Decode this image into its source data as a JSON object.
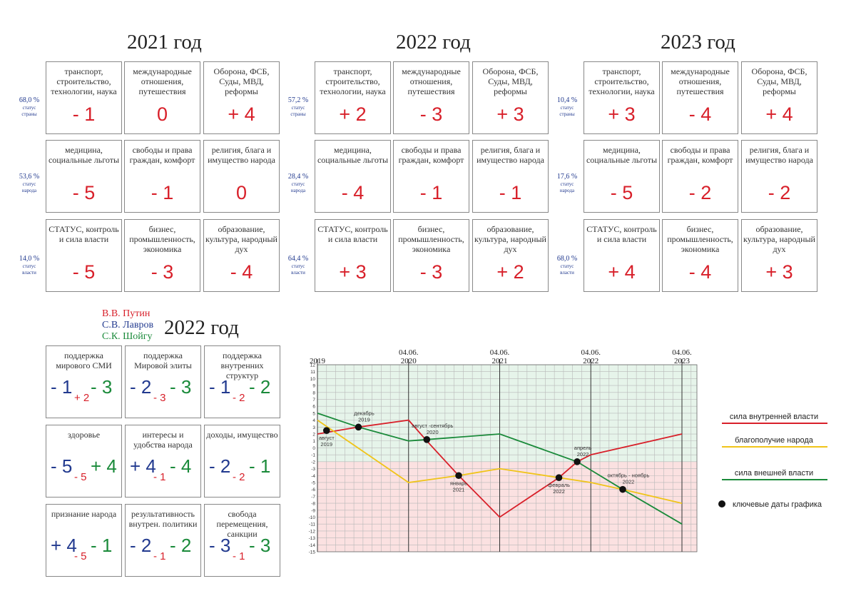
{
  "years": [
    "2021 год",
    "2022 год",
    "2023 год"
  ],
  "blocks": [
    {
      "side": [
        {
          "pct": "68,0 %",
          "l1": "статус",
          "l2": "страны"
        },
        {
          "pct": "53,6 %",
          "l1": "статус",
          "l2": "народа"
        },
        {
          "pct": "14,0 %",
          "l1": "статус",
          "l2": "власти"
        }
      ],
      "cells": [
        {
          "label": "транспорт, строительство, технологии, наука",
          "value": "- 1"
        },
        {
          "label": "международные отношения, путешествия",
          "value": "0"
        },
        {
          "label": "Оборона, ФСБ, Суды, МВД, реформы",
          "value": "+ 4"
        },
        {
          "label": "медицина, социальные льготы",
          "value": "- 5"
        },
        {
          "label": "свободы и права граждан, комфорт",
          "value": "- 1"
        },
        {
          "label": "религия, блага и имущество народа",
          "value": "0"
        },
        {
          "label": "СТАТУС, контроль и сила власти",
          "value": "- 5"
        },
        {
          "label": "бизнес, промышленность, экономика",
          "value": "- 3"
        },
        {
          "label": "образование, культура, народный дух",
          "value": "- 4"
        }
      ]
    },
    {
      "side": [
        {
          "pct": "57,2 %",
          "l1": "статус",
          "l2": "страны"
        },
        {
          "pct": "28,4 %",
          "l1": "статус",
          "l2": "народа"
        },
        {
          "pct": "64,4 %",
          "l1": "статус",
          "l2": "власти"
        }
      ],
      "cells": [
        {
          "label": "транспорт, строительство, технологии, наука",
          "value": "+ 2"
        },
        {
          "label": "международные отношения, путешествия",
          "value": "- 3"
        },
        {
          "label": "Оборона, ФСБ, Суды, МВД, реформы",
          "value": "+ 3"
        },
        {
          "label": "медицина, социальные льготы",
          "value": "- 4"
        },
        {
          "label": "свободы и права граждан, комфорт",
          "value": "- 1"
        },
        {
          "label": "религия, блага и имущество народа",
          "value": "- 1"
        },
        {
          "label": "СТАТУС, контроль и сила власти",
          "value": "+ 3"
        },
        {
          "label": "бизнес, промышленность, экономика",
          "value": "- 3"
        },
        {
          "label": "образование, культура, народный дух",
          "value": "+ 2"
        }
      ]
    },
    {
      "side": [
        {
          "pct": "10,4 %",
          "l1": "статус",
          "l2": "страны"
        },
        {
          "pct": "17,6 %",
          "l1": "статус",
          "l2": "народа"
        },
        {
          "pct": "68,0 %",
          "l1": "статус",
          "l2": "власти"
        }
      ],
      "cells": [
        {
          "label": "транспорт, строительство, технологии, наука",
          "value": "+ 3"
        },
        {
          "label": "международные отношения, путешествия",
          "value": "- 4"
        },
        {
          "label": "Оборона, ФСБ, Суды, МВД, реформы",
          "value": "+ 4"
        },
        {
          "label": "медицина, социальные льготы",
          "value": "- 5"
        },
        {
          "label": "свободы и права граждан, комфорт",
          "value": "- 2"
        },
        {
          "label": "религия, блага и имущество народа",
          "value": "- 2"
        },
        {
          "label": "СТАТУС, контроль и сила власти",
          "value": "+ 4"
        },
        {
          "label": "бизнес, промышленность, экономика",
          "value": "- 4"
        },
        {
          "label": "образование, культура, народный дух",
          "value": "+ 3"
        }
      ]
    }
  ],
  "persons": {
    "title": "2022 год",
    "names": [
      "В.В. Путин",
      "С.В. Лавров",
      "С.К. Шойгу"
    ],
    "colors": [
      "#d8202a",
      "#223a8f",
      "#1a8a3a"
    ],
    "cells": [
      {
        "label": "поддержка мирового СМИ",
        "v1": "- 1",
        "v2": "+ 2",
        "v3": "- 3"
      },
      {
        "label": "поддержка Мировой элиты",
        "v1": "- 2",
        "v2": "- 3",
        "v3": "- 3"
      },
      {
        "label": "поддержка внутренних структур",
        "v1": "- 1",
        "v2": "- 2",
        "v3": "- 2"
      },
      {
        "label": "здоровье",
        "v1": "- 5",
        "v2": "- 5",
        "v3": "+ 4"
      },
      {
        "label": "интересы и удобства народа",
        "v1": "+ 4",
        "v2": "- 1",
        "v3": "- 4"
      },
      {
        "label": "доходы, имущество",
        "v1": "- 2",
        "v2": "- 2",
        "v3": "- 1"
      },
      {
        "label": "признание народа",
        "v1": "+ 4",
        "v2": "- 5",
        "v3": "- 1"
      },
      {
        "label": "результативность внутрен. политики",
        "v1": "- 2",
        "v2": "- 1",
        "v3": "- 2"
      },
      {
        "label": "свобода перемещения, санкции",
        "v1": "- 3",
        "v2": "- 1",
        "v3": "- 3"
      }
    ]
  },
  "chart_data": {
    "type": "line",
    "ylim": [
      -15,
      12
    ],
    "yticks": [
      12,
      11,
      10,
      9,
      8,
      7,
      6,
      5,
      4,
      3,
      2,
      1,
      0,
      -1,
      -2,
      -3,
      -4,
      -5,
      -6,
      -7,
      -8,
      -9,
      -10,
      -11,
      -12,
      -13,
      -14,
      -15
    ],
    "x_labels": [
      {
        "x": 2019.0,
        "lines": [
          "",
          "2019"
        ]
      },
      {
        "x": 2020.0,
        "lines": [
          "04.06.",
          "2020"
        ]
      },
      {
        "x": 2021.0,
        "lines": [
          "04.06.",
          "2021"
        ]
      },
      {
        "x": 2022.0,
        "lines": [
          "04.06.",
          "2022"
        ]
      },
      {
        "x": 2023.0,
        "lines": [
          "04.06.",
          "2023"
        ]
      }
    ],
    "xlim": [
      2019.0,
      2023.2
    ],
    "background_split": -2,
    "bg_colors": {
      "upper": "#e6f4ea",
      "lower": "#fbe1e1",
      "grid": "#b8b8b8"
    },
    "series": [
      {
        "name": "сила внутренней власти",
        "color": "#d8202a",
        "points": [
          [
            2019.0,
            2
          ],
          [
            2019.45,
            3
          ],
          [
            2020.0,
            4
          ],
          [
            2020.2,
            1
          ],
          [
            2020.55,
            -4
          ],
          [
            2021.0,
            -10
          ],
          [
            2021.65,
            -4.3
          ],
          [
            2021.85,
            -2
          ],
          [
            2022.0,
            -1
          ],
          [
            2023.0,
            2
          ]
        ]
      },
      {
        "name": "благополучие народа",
        "color": "#f0c419",
        "points": [
          [
            2019.0,
            4
          ],
          [
            2020.0,
            -5
          ],
          [
            2020.55,
            -4
          ],
          [
            2021.0,
            -3
          ],
          [
            2021.65,
            -4.3
          ],
          [
            2022.0,
            -5
          ],
          [
            2022.35,
            -6
          ],
          [
            2023.0,
            -8
          ]
        ]
      },
      {
        "name": "сила внешней власти",
        "color": "#1a8a3a",
        "points": [
          [
            2019.0,
            5
          ],
          [
            2019.45,
            3
          ],
          [
            2020.0,
            1
          ],
          [
            2020.2,
            1.2
          ],
          [
            2021.0,
            2
          ],
          [
            2021.85,
            -2
          ],
          [
            2022.35,
            -6
          ],
          [
            2023.0,
            -11
          ]
        ]
      }
    ],
    "key_dates": [
      {
        "x": 2019.1,
        "y": 2.5,
        "label": [
          "август",
          "2019"
        ],
        "lpos": "below"
      },
      {
        "x": 2019.45,
        "y": 3,
        "label": [
          "декабрь",
          "2019"
        ],
        "lpos": "above"
      },
      {
        "x": 2020.2,
        "y": 1.2,
        "label": [
          "август -сентябрь",
          "2020"
        ],
        "lpos": "above"
      },
      {
        "x": 2020.55,
        "y": -4,
        "label": [
          "январь",
          "2021"
        ],
        "lpos": "below"
      },
      {
        "x": 2021.65,
        "y": -4.3,
        "label": [
          "февраль",
          "2022"
        ],
        "lpos": "below"
      },
      {
        "x": 2021.85,
        "y": -2,
        "label": [
          "апрель",
          "2022"
        ],
        "lpos": "above"
      },
      {
        "x": 2022.35,
        "y": -6,
        "label": [
          "октябрь - ноябрь",
          "2022"
        ],
        "lpos": "above"
      }
    ],
    "key_dates_legend": "ключевые даты графика"
  }
}
